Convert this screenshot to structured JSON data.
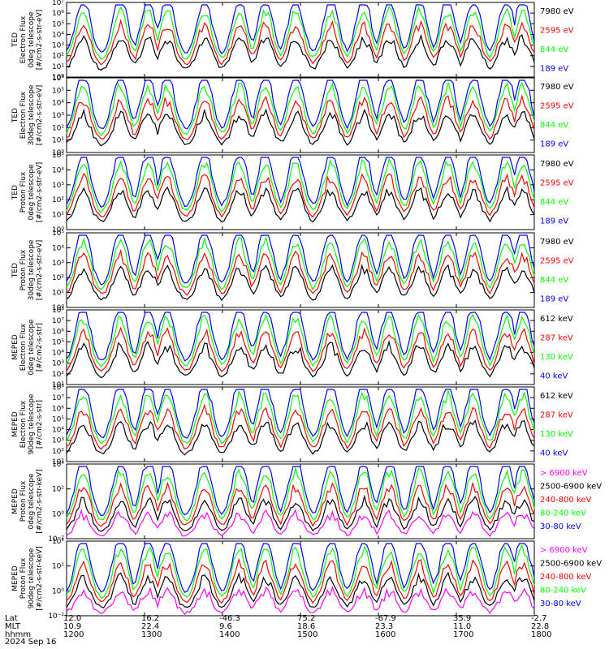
{
  "colors": {
    "black": "#000000",
    "red": "#ff0000",
    "green": "#00ff00",
    "blue": "#0000ff",
    "magenta": "#ff00ff",
    "axis": "#000000",
    "background": "#ffffff"
  },
  "footer": {
    "labels": [
      "Lat",
      "MLT",
      "hhmm",
      "2024 Sep 16"
    ],
    "lat": [
      "12.0",
      "16.2",
      "-46.3",
      "75.2",
      "-67.9",
      "35.9",
      "-2.7"
    ],
    "mlt": [
      "10.9",
      "22.4",
      "9.6",
      "18.6",
      "23.3",
      "11.0",
      "22.8"
    ],
    "hhmm": [
      "1200",
      "1300",
      "1400",
      "1500",
      "1600",
      "1700",
      "1800"
    ]
  },
  "chart_data": [
    {
      "type": "line",
      "ylabel": [
        "TED",
        "Electron Flux",
        "0deg telescope",
        "[#/cm2-s-str-eV]"
      ],
      "yscale": "log",
      "ylim": [
        1,
        10000000
      ],
      "yticks": [
        "10⁰",
        "10¹",
        "10²",
        "10³",
        "10⁴",
        "10⁵",
        "10⁶",
        "10⁷"
      ],
      "xlim": [
        "1200",
        "1800"
      ],
      "series": [
        {
          "name": "7980 eV",
          "color": "black",
          "level": 0
        },
        {
          "name": "2595 eV",
          "color": "red",
          "level": 1
        },
        {
          "name": "844 eV",
          "color": "green",
          "level": 2
        },
        {
          "name": "189 eV",
          "color": "blue",
          "level": 3
        }
      ]
    },
    {
      "type": "line",
      "ylabel": [
        "TED",
        "Electron Flux",
        "30deg telescope",
        "[#/cm2-s-str-eV]"
      ],
      "yscale": "log",
      "ylim": [
        1,
        1000000
      ],
      "yticks": [
        "10⁰",
        "10¹",
        "10²",
        "10³",
        "10⁴",
        "10⁵",
        "10⁶"
      ],
      "xlim": [
        "1200",
        "1800"
      ],
      "series": [
        {
          "name": "7980 eV",
          "color": "black",
          "level": 0
        },
        {
          "name": "2595 eV",
          "color": "red",
          "level": 1
        },
        {
          "name": "844 eV",
          "color": "green",
          "level": 2
        },
        {
          "name": "189 eV",
          "color": "blue",
          "level": 3
        }
      ]
    },
    {
      "type": "line",
      "ylabel": [
        "TED",
        "Proton Flux",
        "0deg telescope",
        "[#/cm2-s-str-eV]"
      ],
      "yscale": "log",
      "ylim": [
        1,
        100000
      ],
      "yticks": [
        "10⁰",
        "10¹",
        "10²",
        "10³",
        "10⁴",
        "10⁵"
      ],
      "xlim": [
        "1200",
        "1800"
      ],
      "series": [
        {
          "name": "7980 eV",
          "color": "black",
          "level": 0
        },
        {
          "name": "2595 eV",
          "color": "red",
          "level": 1
        },
        {
          "name": "844 eV",
          "color": "green",
          "level": 2
        },
        {
          "name": "189 eV",
          "color": "blue",
          "level": 3
        }
      ]
    },
    {
      "type": "line",
      "ylabel": [
        "TED",
        "Proton Flux",
        "30deg telescope",
        "[#/cm2-s-str-eV]"
      ],
      "yscale": "log",
      "ylim": [
        1,
        100000
      ],
      "yticks": [
        "10⁰",
        "10¹",
        "10²",
        "10³",
        "10⁴",
        "10⁵"
      ],
      "xlim": [
        "1200",
        "1800"
      ],
      "series": [
        {
          "name": "7980 eV",
          "color": "black",
          "level": 0
        },
        {
          "name": "2595 eV",
          "color": "red",
          "level": 1
        },
        {
          "name": "844 eV",
          "color": "green",
          "level": 2
        },
        {
          "name": "189 eV",
          "color": "blue",
          "level": 3
        }
      ]
    },
    {
      "type": "line",
      "ylabel": [
        "MEPED",
        "Electron Flux",
        "0deg telescope",
        "[#/cm2-s-str]"
      ],
      "yscale": "log",
      "ylim": [
        10,
        100000000
      ],
      "yticks": [
        "10¹",
        "10²",
        "10³",
        "10⁴",
        "10⁵",
        "10⁶",
        "10⁷",
        "10⁸"
      ],
      "xlim": [
        "1200",
        "1800"
      ],
      "series": [
        {
          "name": "612 keV",
          "color": "black",
          "level": 0
        },
        {
          "name": "287 keV",
          "color": "red",
          "level": 1
        },
        {
          "name": "130 keV",
          "color": "green",
          "level": 2
        },
        {
          "name": "40 keV",
          "color": "blue",
          "level": 3
        }
      ]
    },
    {
      "type": "line",
      "ylabel": [
        "MEPED",
        "Electron Flux",
        "90deg telescope",
        "[#/cm2-s-str]"
      ],
      "yscale": "log",
      "ylim": [
        10,
        100000000
      ],
      "yticks": [
        "10¹",
        "10²",
        "10³",
        "10⁴",
        "10⁵",
        "10⁶",
        "10⁷",
        "10⁸"
      ],
      "xlim": [
        "1200",
        "1800"
      ],
      "series": [
        {
          "name": "612 keV",
          "color": "black",
          "level": 0
        },
        {
          "name": "287 keV",
          "color": "red",
          "level": 1
        },
        {
          "name": "130 keV",
          "color": "green",
          "level": 2
        },
        {
          "name": "40 keV",
          "color": "blue",
          "level": 3
        }
      ]
    },
    {
      "type": "line",
      "ylabel": [
        "MEPED",
        "Proton Flux",
        "0deg telescope",
        "[#/cm2-s-str-keV]"
      ],
      "yscale": "log",
      "ylim": [
        0.01,
        100000
      ],
      "yticks": [
        "10⁻²",
        "10⁰",
        "10²",
        "10⁴"
      ],
      "xlim": [
        "1200",
        "1800"
      ],
      "series": [
        {
          "name": "> 6900 keV",
          "color": "magenta",
          "level": -1
        },
        {
          "name": "2500-6900 keV",
          "color": "black",
          "level": 0
        },
        {
          "name": "240-800 keV",
          "color": "red",
          "level": 1
        },
        {
          "name": "80-240 keV",
          "color": "green",
          "level": 2
        },
        {
          "name": "30-80 keV",
          "color": "blue",
          "level": 3
        }
      ]
    },
    {
      "type": "line",
      "ylabel": [
        "MEPED",
        "Proton Flux",
        "90deg telescope",
        "[#/cm2-s-str-keV]"
      ],
      "yscale": "log",
      "ylim": [
        0.01,
        100000
      ],
      "yticks": [
        "10⁻²",
        "10⁰",
        "10²",
        "10⁴"
      ],
      "xlim": [
        "1200",
        "1800"
      ],
      "series": [
        {
          "name": "> 6900 keV",
          "color": "magenta",
          "level": -1
        },
        {
          "name": "2500-6900 keV",
          "color": "black",
          "level": 0
        },
        {
          "name": "240-800 keV",
          "color": "red",
          "level": 1
        },
        {
          "name": "80-240 keV",
          "color": "green",
          "level": 2
        },
        {
          "name": "30-80 keV",
          "color": "blue",
          "level": 3
        }
      ]
    }
  ]
}
